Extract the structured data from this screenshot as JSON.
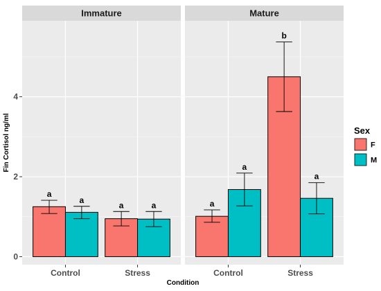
{
  "chart_data": {
    "type": "bar",
    "facets": [
      "Immature",
      "Mature"
    ],
    "categories": [
      "Control",
      "Stress"
    ],
    "series": [
      {
        "name": "F",
        "color": "#F8766D"
      },
      {
        "name": "M",
        "color": "#00BFC4"
      }
    ],
    "panels": [
      {
        "facet": "Immature",
        "bars": [
          {
            "category": "Control",
            "series": "F",
            "value": 1.25,
            "err_low": 1.08,
            "err_high": 1.41,
            "label": "a"
          },
          {
            "category": "Control",
            "series": "M",
            "value": 1.11,
            "err_low": 0.95,
            "err_high": 1.26,
            "label": "a"
          },
          {
            "category": "Stress",
            "series": "F",
            "value": 0.95,
            "err_low": 0.77,
            "err_high": 1.13,
            "label": "a"
          },
          {
            "category": "Stress",
            "series": "M",
            "value": 0.94,
            "err_low": 0.75,
            "err_high": 1.13,
            "label": "a"
          }
        ]
      },
      {
        "facet": "Mature",
        "bars": [
          {
            "category": "Control",
            "series": "F",
            "value": 1.01,
            "err_low": 0.86,
            "err_high": 1.17,
            "label": "a"
          },
          {
            "category": "Control",
            "series": "M",
            "value": 1.68,
            "err_low": 1.27,
            "err_high": 2.09,
            "label": "a"
          },
          {
            "category": "Stress",
            "series": "F",
            "value": 4.5,
            "err_low": 3.63,
            "err_high": 5.37,
            "label": "b"
          },
          {
            "category": "Stress",
            "series": "M",
            "value": 1.46,
            "err_low": 1.07,
            "err_high": 1.85,
            "label": "a"
          }
        ]
      }
    ],
    "xlabel": "Condition",
    "ylabel": "Fin Cortisol ng/ml",
    "ylim": [
      -0.2,
      5.9
    ],
    "yticks": [
      0,
      2,
      4
    ],
    "grid": true,
    "legend": {
      "title": "Sex",
      "position": "right"
    }
  }
}
